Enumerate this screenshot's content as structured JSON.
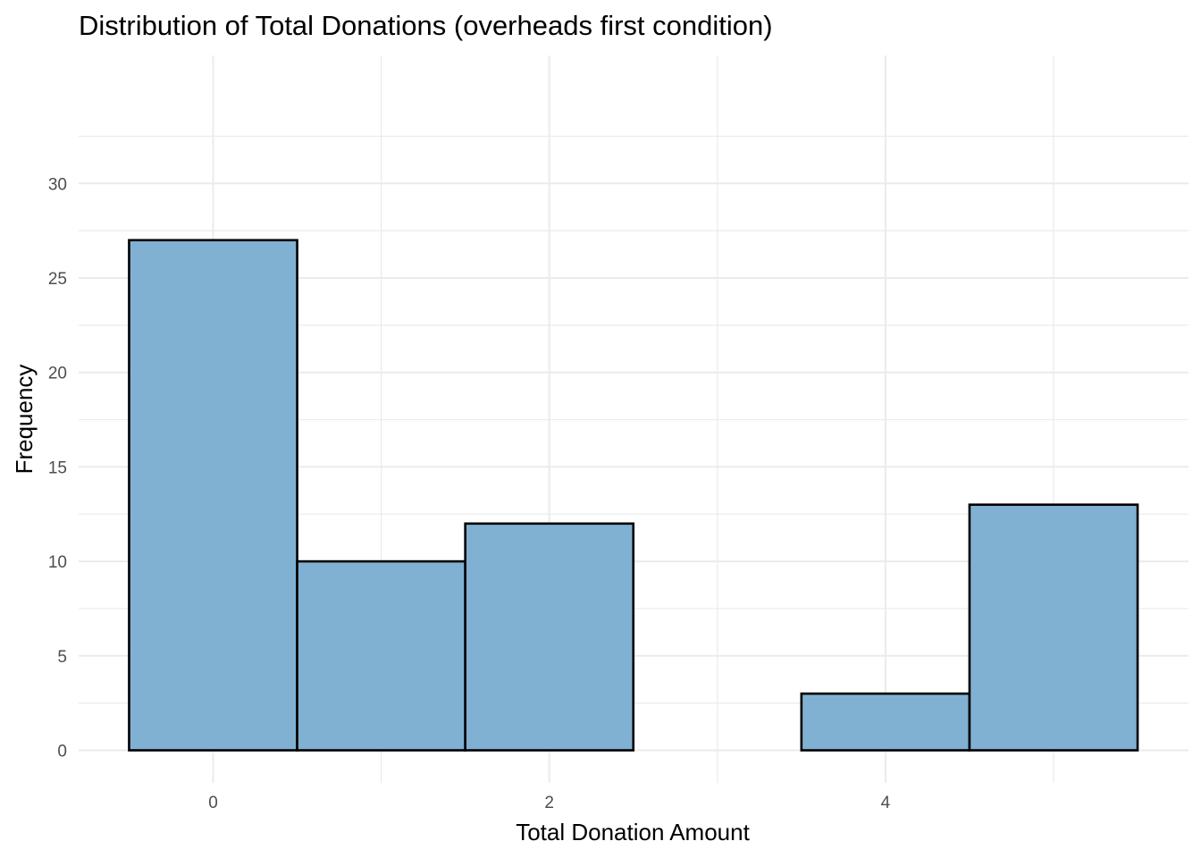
{
  "chart_data": {
    "type": "bar",
    "title": "Distribution of Total Donations (overheads first condition)",
    "xlabel": "Total Donation Amount",
    "ylabel": "Frequency",
    "bins": [
      {
        "x": 0,
        "count": 27
      },
      {
        "x": 1,
        "count": 10
      },
      {
        "x": 2,
        "count": 12
      },
      {
        "x": 3,
        "count": 0
      },
      {
        "x": 4,
        "count": 3
      },
      {
        "x": 5,
        "count": 13
      }
    ],
    "bin_width": 1,
    "xlim": [
      -0.5,
      5.5
    ],
    "ylim": [
      0,
      30
    ],
    "x_ticks": [
      0,
      2,
      4
    ],
    "y_ticks": [
      0,
      5,
      10,
      15,
      20,
      25,
      30
    ],
    "x_tick_labels": [
      "0",
      "2",
      "4"
    ],
    "y_tick_labels": [
      "0",
      "5",
      "10",
      "15",
      "20",
      "25",
      "30"
    ],
    "grid": true,
    "legend": false,
    "colors": {
      "bar_fill": "#80b1d3",
      "bar_outline": "#000000",
      "grid": "#ebebeb",
      "tick_text": "#4d4d4d",
      "background": "#ffffff"
    }
  }
}
